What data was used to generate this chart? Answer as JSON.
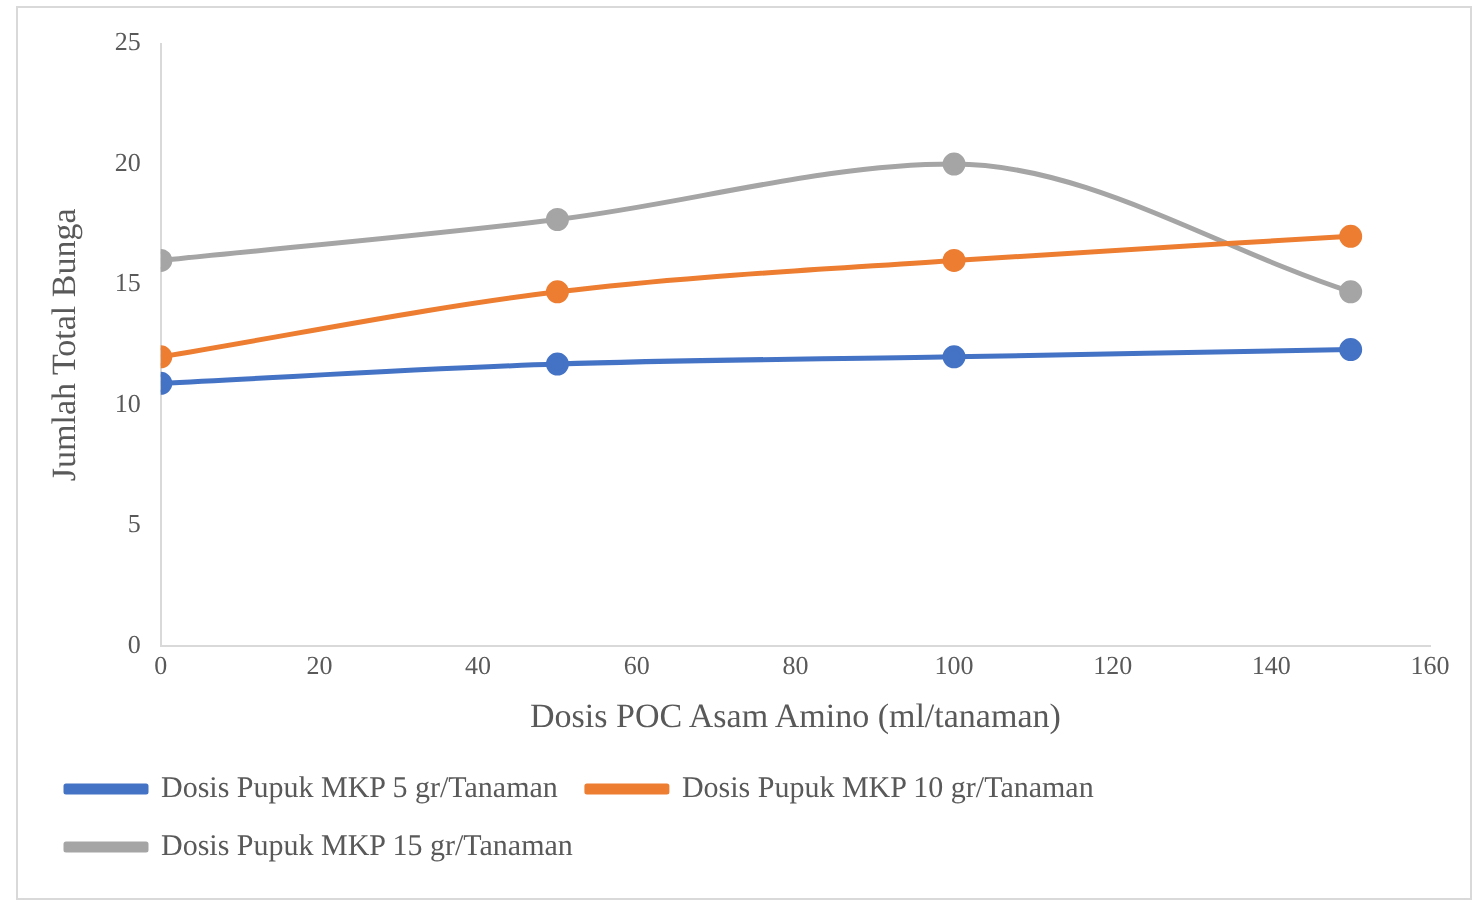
{
  "chart_data": {
    "type": "line",
    "xlabel": "Dosis POC Asam Amino (ml/tanaman)",
    "ylabel": "Jumlah Total Bunga",
    "x": [
      0,
      50,
      100,
      150
    ],
    "series": [
      {
        "name": "Dosis Pupuk MKP 5 gr/Tanaman",
        "color": "#4472c4",
        "values": [
          10.9,
          11.7,
          12,
          12.3
        ]
      },
      {
        "name": "Dosis Pupuk MKP 10 gr/Tanaman",
        "color": "#ed7d31",
        "values": [
          12,
          14.7,
          16,
          17
        ]
      },
      {
        "name": "Dosis Pupuk MKP 15 gr/Tanaman",
        "color": "#a5a5a5",
        "values": [
          16,
          17.7,
          20,
          14.7
        ]
      }
    ],
    "xlim": [
      0,
      160
    ],
    "xticks": [
      0,
      20,
      40,
      60,
      80,
      100,
      120,
      140,
      160
    ],
    "ylim": [
      0,
      25
    ],
    "yticks": [
      0,
      5,
      10,
      15,
      20,
      25
    ],
    "grid": false,
    "legend": "bottom",
    "marker": "circle",
    "line_style": "solid"
  }
}
